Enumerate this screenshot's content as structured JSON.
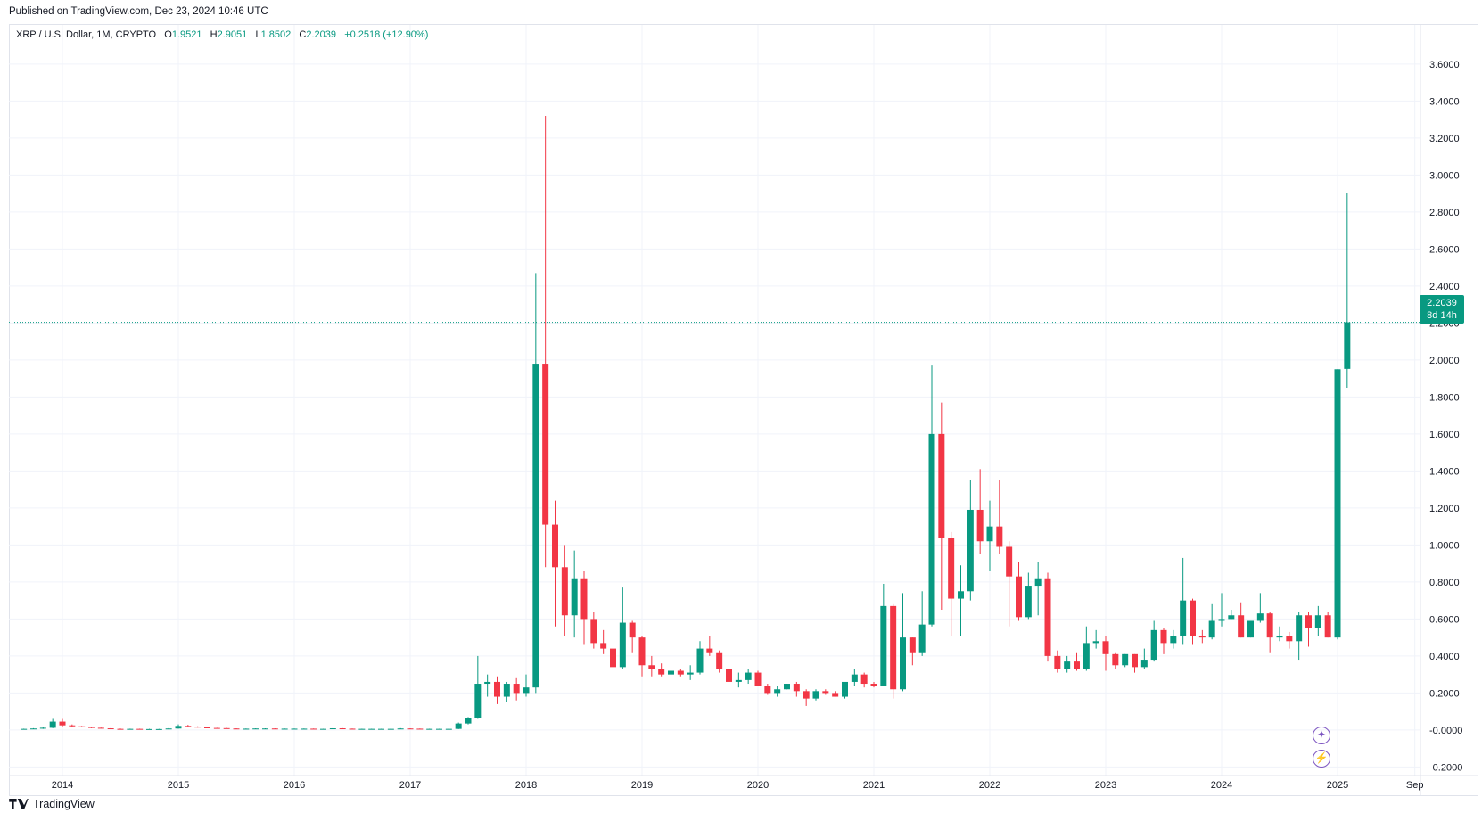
{
  "header": {
    "published": "Published on TradingView.com, Dec 23, 2024 10:46 UTC"
  },
  "legend": {
    "symbol": "XRP / U.S. Dollar, 1M, CRYPTO",
    "open_label": "O",
    "open": "1.9521",
    "high_label": "H",
    "high": "2.9051",
    "low_label": "L",
    "low": "1.8502",
    "close_label": "C",
    "close": "2.2039",
    "change": "+0.2518 (+12.90%)"
  },
  "price_tag": {
    "price": "2.2039",
    "countdown": "8d 14h"
  },
  "footer": {
    "brand": "TradingView"
  },
  "colors": {
    "up": "#089981",
    "down": "#f23645",
    "grid": "#f0f3fa",
    "accent": "#7e57c2"
  },
  "chart_data": {
    "type": "candlestick",
    "interval": "1M",
    "y_ticks": [
      "3.6000",
      "3.4000",
      "3.2000",
      "3.0000",
      "2.8000",
      "2.6000",
      "2.4000",
      "2.2000",
      "2.0000",
      "1.8000",
      "1.6000",
      "1.4000",
      "1.2000",
      "1.0000",
      "0.8000",
      "0.6000",
      "0.4000",
      "0.2000",
      "-0.0000",
      "-0.2000"
    ],
    "ylim": [
      -0.28,
      3.72
    ],
    "x_ticks": [
      "2014",
      "2015",
      "2016",
      "2017",
      "2018",
      "2019",
      "2020",
      "2021",
      "2022",
      "2023",
      "2024",
      "2025",
      "Sep"
    ],
    "last_price": 2.2039,
    "start": [
      2013,
      8
    ],
    "ohlc": [
      [
        0.005,
        0.007,
        0.004,
        0.006
      ],
      [
        0.006,
        0.01,
        0.005,
        0.008
      ],
      [
        0.008,
        0.015,
        0.006,
        0.012
      ],
      [
        0.012,
        0.06,
        0.01,
        0.045
      ],
      [
        0.045,
        0.06,
        0.018,
        0.025
      ],
      [
        0.025,
        0.03,
        0.015,
        0.02
      ],
      [
        0.02,
        0.022,
        0.014,
        0.016
      ],
      [
        0.016,
        0.018,
        0.01,
        0.012
      ],
      [
        0.012,
        0.013,
        0.008,
        0.009
      ],
      [
        0.009,
        0.01,
        0.005,
        0.006
      ],
      [
        0.006,
        0.008,
        0.004,
        0.005
      ],
      [
        0.005,
        0.007,
        0.004,
        0.006
      ],
      [
        0.006,
        0.007,
        0.004,
        0.005
      ],
      [
        0.005,
        0.006,
        0.004,
        0.005
      ],
      [
        0.005,
        0.006,
        0.004,
        0.005
      ],
      [
        0.005,
        0.01,
        0.004,
        0.008
      ],
      [
        0.008,
        0.03,
        0.007,
        0.022
      ],
      [
        0.022,
        0.028,
        0.015,
        0.018
      ],
      [
        0.018,
        0.02,
        0.013,
        0.014
      ],
      [
        0.014,
        0.016,
        0.01,
        0.011
      ],
      [
        0.011,
        0.012,
        0.009,
        0.01
      ],
      [
        0.01,
        0.011,
        0.007,
        0.008
      ],
      [
        0.008,
        0.009,
        0.006,
        0.007
      ],
      [
        0.007,
        0.008,
        0.006,
        0.007
      ],
      [
        0.007,
        0.009,
        0.006,
        0.008
      ],
      [
        0.008,
        0.009,
        0.007,
        0.008
      ],
      [
        0.008,
        0.009,
        0.007,
        0.007
      ],
      [
        0.007,
        0.008,
        0.006,
        0.007
      ],
      [
        0.007,
        0.008,
        0.006,
        0.007
      ],
      [
        0.007,
        0.008,
        0.006,
        0.007
      ],
      [
        0.007,
        0.008,
        0.006,
        0.006
      ],
      [
        0.006,
        0.007,
        0.005,
        0.006
      ],
      [
        0.006,
        0.01,
        0.005,
        0.009
      ],
      [
        0.009,
        0.01,
        0.006,
        0.007
      ],
      [
        0.007,
        0.008,
        0.006,
        0.006
      ],
      [
        0.006,
        0.007,
        0.005,
        0.006
      ],
      [
        0.006,
        0.007,
        0.005,
        0.006
      ],
      [
        0.006,
        0.007,
        0.005,
        0.006
      ],
      [
        0.006,
        0.007,
        0.005,
        0.006
      ],
      [
        0.006,
        0.01,
        0.005,
        0.008
      ],
      [
        0.008,
        0.009,
        0.006,
        0.007
      ],
      [
        0.007,
        0.008,
        0.006,
        0.006
      ],
      [
        0.006,
        0.007,
        0.005,
        0.006
      ],
      [
        0.006,
        0.007,
        0.005,
        0.006
      ],
      [
        0.006,
        0.007,
        0.005,
        0.006
      ],
      [
        0.006,
        0.04,
        0.005,
        0.035
      ],
      [
        0.035,
        0.07,
        0.03,
        0.065
      ],
      [
        0.065,
        0.4,
        0.06,
        0.25
      ],
      [
        0.25,
        0.3,
        0.18,
        0.26
      ],
      [
        0.26,
        0.29,
        0.14,
        0.18
      ],
      [
        0.18,
        0.26,
        0.15,
        0.25
      ],
      [
        0.25,
        0.28,
        0.16,
        0.2
      ],
      [
        0.2,
        0.3,
        0.18,
        0.23
      ],
      [
        0.23,
        2.47,
        0.2,
        1.98
      ],
      [
        1.98,
        3.32,
        0.88,
        1.11
      ],
      [
        1.11,
        1.24,
        0.56,
        0.88
      ],
      [
        0.88,
        1.0,
        0.51,
        0.62
      ],
      [
        0.62,
        0.97,
        0.5,
        0.82
      ],
      [
        0.82,
        0.86,
        0.46,
        0.6
      ],
      [
        0.6,
        0.64,
        0.44,
        0.47
      ],
      [
        0.47,
        0.54,
        0.41,
        0.44
      ],
      [
        0.44,
        0.48,
        0.26,
        0.34
      ],
      [
        0.34,
        0.77,
        0.33,
        0.58
      ],
      [
        0.58,
        0.59,
        0.42,
        0.5
      ],
      [
        0.5,
        0.51,
        0.29,
        0.35
      ],
      [
        0.35,
        0.4,
        0.29,
        0.33
      ],
      [
        0.33,
        0.36,
        0.29,
        0.3
      ],
      [
        0.3,
        0.34,
        0.29,
        0.32
      ],
      [
        0.32,
        0.33,
        0.29,
        0.3
      ],
      [
        0.3,
        0.35,
        0.27,
        0.31
      ],
      [
        0.31,
        0.48,
        0.3,
        0.44
      ],
      [
        0.44,
        0.51,
        0.4,
        0.42
      ],
      [
        0.42,
        0.43,
        0.31,
        0.33
      ],
      [
        0.33,
        0.34,
        0.24,
        0.26
      ],
      [
        0.26,
        0.31,
        0.23,
        0.27
      ],
      [
        0.27,
        0.33,
        0.25,
        0.31
      ],
      [
        0.31,
        0.32,
        0.24,
        0.24
      ],
      [
        0.24,
        0.25,
        0.19,
        0.2
      ],
      [
        0.2,
        0.24,
        0.18,
        0.22
      ],
      [
        0.22,
        0.25,
        0.22,
        0.25
      ],
      [
        0.25,
        0.26,
        0.18,
        0.21
      ],
      [
        0.21,
        0.22,
        0.13,
        0.17
      ],
      [
        0.17,
        0.22,
        0.16,
        0.21
      ],
      [
        0.21,
        0.22,
        0.19,
        0.2
      ],
      [
        0.2,
        0.21,
        0.18,
        0.18
      ],
      [
        0.18,
        0.26,
        0.17,
        0.26
      ],
      [
        0.26,
        0.33,
        0.24,
        0.3
      ],
      [
        0.3,
        0.31,
        0.23,
        0.25
      ],
      [
        0.25,
        0.26,
        0.23,
        0.24
      ],
      [
        0.24,
        0.79,
        0.24,
        0.67
      ],
      [
        0.67,
        0.68,
        0.17,
        0.22
      ],
      [
        0.22,
        0.74,
        0.21,
        0.5
      ],
      [
        0.5,
        0.5,
        0.35,
        0.42
      ],
      [
        0.42,
        0.75,
        0.4,
        0.57
      ],
      [
        0.57,
        1.97,
        0.56,
        1.6
      ],
      [
        1.6,
        1.77,
        0.65,
        1.04
      ],
      [
        1.04,
        1.07,
        0.51,
        0.71
      ],
      [
        0.71,
        0.89,
        0.51,
        0.75
      ],
      [
        0.75,
        1.35,
        0.7,
        1.19
      ],
      [
        1.19,
        1.41,
        0.95,
        1.02
      ],
      [
        1.02,
        1.24,
        0.86,
        1.1
      ],
      [
        1.1,
        1.35,
        0.95,
        0.99
      ],
      [
        0.99,
        1.02,
        0.56,
        0.83
      ],
      [
        0.83,
        0.91,
        0.59,
        0.61
      ],
      [
        0.61,
        0.85,
        0.6,
        0.78
      ],
      [
        0.78,
        0.91,
        0.62,
        0.82
      ],
      [
        0.82,
        0.85,
        0.37,
        0.4
      ],
      [
        0.4,
        0.43,
        0.31,
        0.33
      ],
      [
        0.33,
        0.4,
        0.31,
        0.37
      ],
      [
        0.37,
        0.42,
        0.32,
        0.33
      ],
      [
        0.33,
        0.56,
        0.32,
        0.47
      ],
      [
        0.47,
        0.54,
        0.44,
        0.48
      ],
      [
        0.48,
        0.51,
        0.32,
        0.41
      ],
      [
        0.41,
        0.42,
        0.33,
        0.35
      ],
      [
        0.35,
        0.41,
        0.34,
        0.41
      ],
      [
        0.41,
        0.41,
        0.31,
        0.34
      ],
      [
        0.34,
        0.44,
        0.33,
        0.38
      ],
      [
        0.38,
        0.59,
        0.37,
        0.54
      ],
      [
        0.54,
        0.55,
        0.41,
        0.47
      ],
      [
        0.47,
        0.54,
        0.44,
        0.51
      ],
      [
        0.51,
        0.93,
        0.46,
        0.7
      ],
      [
        0.7,
        0.71,
        0.46,
        0.51
      ],
      [
        0.51,
        0.54,
        0.47,
        0.5
      ],
      [
        0.5,
        0.68,
        0.49,
        0.59
      ],
      [
        0.59,
        0.74,
        0.56,
        0.6
      ],
      [
        0.6,
        0.65,
        0.6,
        0.62
      ],
      [
        0.62,
        0.69,
        0.5,
        0.5
      ],
      [
        0.5,
        0.59,
        0.5,
        0.59
      ],
      [
        0.59,
        0.74,
        0.58,
        0.63
      ],
      [
        0.63,
        0.64,
        0.42,
        0.5
      ],
      [
        0.5,
        0.56,
        0.48,
        0.51
      ],
      [
        0.51,
        0.53,
        0.44,
        0.48
      ],
      [
        0.48,
        0.64,
        0.38,
        0.62
      ],
      [
        0.62,
        0.64,
        0.45,
        0.55
      ],
      [
        0.55,
        0.67,
        0.51,
        0.62
      ],
      [
        0.62,
        0.64,
        0.5,
        0.5
      ],
      [
        0.5,
        1.95,
        0.49,
        1.95
      ],
      [
        1.952,
        2.905,
        1.85,
        2.204
      ]
    ]
  }
}
